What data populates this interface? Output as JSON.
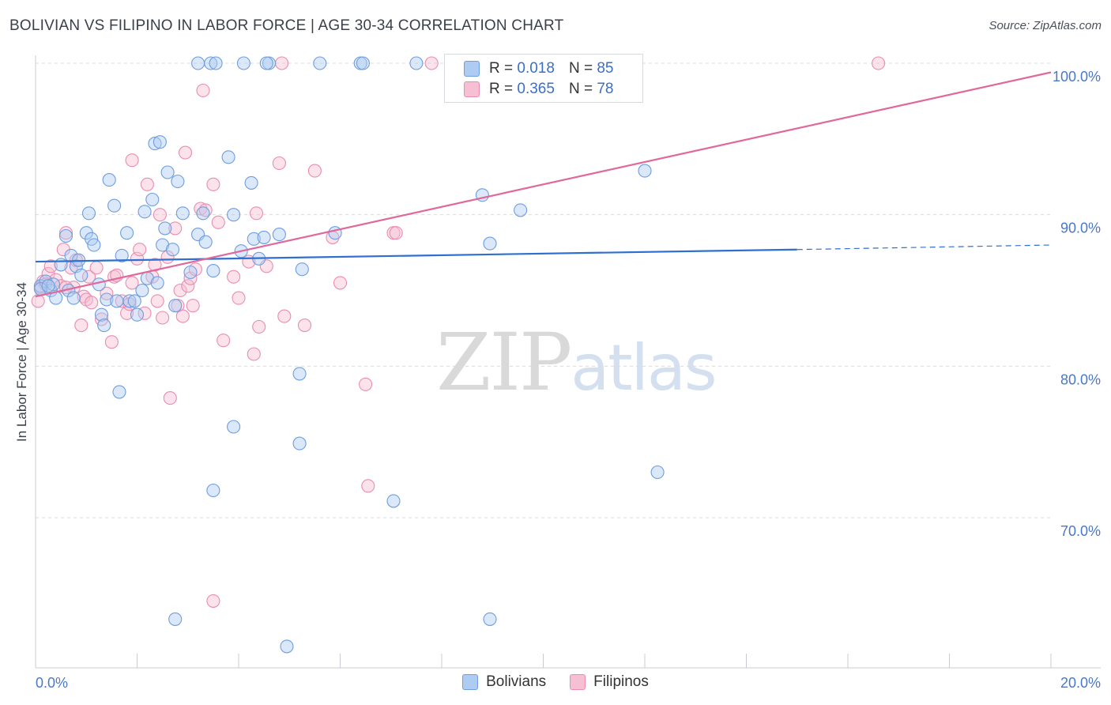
{
  "header": {
    "title": "BOLIVIAN VS FILIPINO IN LABOR FORCE | AGE 30-34 CORRELATION CHART",
    "source": "Source: ZipAtlas.com"
  },
  "watermark": {
    "zip": "ZIP",
    "atlas": "atlas"
  },
  "legend": {
    "bolivians": {
      "r_label": "R =",
      "r_value": "0.018",
      "n_label": "N =",
      "n_value": "85"
    },
    "filipinos": {
      "r_label": "R =",
      "r_value": "0.365",
      "n_label": "N =",
      "n_value": "78"
    }
  },
  "bottom_legend": {
    "bolivians": "Bolivians",
    "filipinos": "Filipinos"
  },
  "colors": {
    "bolivian_fill": "#aecbf2",
    "bolivian_stroke": "#6e9de0",
    "bolivian_line": "#2f6fcf",
    "filipino_fill": "#f7bfd3",
    "filipino_stroke": "#e98db0",
    "filipino_line": "#e0689a",
    "tick_text": "#4a78c8",
    "grid": "#d8dbe0"
  },
  "chart_data": {
    "type": "scatter",
    "title": "BOLIVIAN VS FILIPINO IN LABOR FORCE | AGE 30-34 CORRELATION CHART",
    "xlabel": "",
    "ylabel": "In Labor Force | Age 30-34",
    "xlim": [
      0,
      20
    ],
    "ylim": [
      60.5,
      102
    ],
    "x_tick_labels": [
      "0.0%",
      "20.0%"
    ],
    "y_ticks": [
      70,
      80,
      90,
      100
    ],
    "y_tick_labels": [
      "70.0%",
      "80.0%",
      "90.0%",
      "100.0%"
    ],
    "series": [
      {
        "name": "Bolivians",
        "R": 0.018,
        "N": 85,
        "trend": {
          "x0": 0,
          "y0": 86.9,
          "x1": 15,
          "y1": 87.7,
          "dashed_to_x": 20,
          "dashed_to_y": 88.0
        },
        "points": [
          [
            0.1,
            85.3
          ],
          [
            0.2,
            85.6
          ],
          [
            0.3,
            85.0
          ],
          [
            0.35,
            85.4
          ],
          [
            0.4,
            84.5
          ],
          [
            0.5,
            86.7
          ],
          [
            0.6,
            88.6
          ],
          [
            0.65,
            85.0
          ],
          [
            0.7,
            87.3
          ],
          [
            0.75,
            84.5
          ],
          [
            0.8,
            86.6
          ],
          [
            0.85,
            87.0
          ],
          [
            0.9,
            86.0
          ],
          [
            1.0,
            88.8
          ],
          [
            1.05,
            90.1
          ],
          [
            1.1,
            88.4
          ],
          [
            1.15,
            88.0
          ],
          [
            1.25,
            85.4
          ],
          [
            1.3,
            83.4
          ],
          [
            1.35,
            82.7
          ],
          [
            1.4,
            84.4
          ],
          [
            1.45,
            92.3
          ],
          [
            1.6,
            84.3
          ],
          [
            1.55,
            90.6
          ],
          [
            1.65,
            78.3
          ],
          [
            1.7,
            87.3
          ],
          [
            1.8,
            88.8
          ],
          [
            1.85,
            84.3
          ],
          [
            1.95,
            84.3
          ],
          [
            2.0,
            83.4
          ],
          [
            2.1,
            85.0
          ],
          [
            2.15,
            90.2
          ],
          [
            2.2,
            85.8
          ],
          [
            2.3,
            91.0
          ],
          [
            2.35,
            94.7
          ],
          [
            2.4,
            85.5
          ],
          [
            2.45,
            94.8
          ],
          [
            2.5,
            88.0
          ],
          [
            2.55,
            89.1
          ],
          [
            2.6,
            92.8
          ],
          [
            2.7,
            87.7
          ],
          [
            2.75,
            84.0
          ],
          [
            2.8,
            92.2
          ],
          [
            2.9,
            90.1
          ],
          [
            3.05,
            86.2
          ],
          [
            3.2,
            88.7
          ],
          [
            3.3,
            90.1
          ],
          [
            3.35,
            88.2
          ],
          [
            3.5,
            86.3
          ],
          [
            3.8,
            93.8
          ],
          [
            3.9,
            90.0
          ],
          [
            4.05,
            87.6
          ],
          [
            4.25,
            92.1
          ],
          [
            4.3,
            88.4
          ],
          [
            4.4,
            87.1
          ],
          [
            4.5,
            88.5
          ],
          [
            4.8,
            88.7
          ],
          [
            5.2,
            79.5
          ],
          [
            5.25,
            86.4
          ],
          [
            5.2,
            74.9
          ],
          [
            3.9,
            76.0
          ],
          [
            3.5,
            71.8
          ],
          [
            2.75,
            63.3
          ],
          [
            4.95,
            61.5
          ],
          [
            5.9,
            88.8
          ],
          [
            8.8,
            91.3
          ],
          [
            8.95,
            88.1
          ],
          [
            9.55,
            90.3
          ],
          [
            8.95,
            63.3
          ],
          [
            7.05,
            71.1
          ],
          [
            12.0,
            92.9
          ],
          [
            12.25,
            73.0
          ],
          [
            3.2,
            100
          ],
          [
            3.45,
            100
          ],
          [
            4.1,
            100
          ],
          [
            4.6,
            100
          ],
          [
            5.6,
            100
          ],
          [
            6.4,
            100
          ],
          [
            6.45,
            100
          ],
          [
            7.5,
            100
          ],
          [
            8.2,
            100
          ],
          [
            3.55,
            100
          ],
          [
            4.55,
            100
          ],
          [
            0.1,
            85.1
          ],
          [
            0.25,
            85.3
          ]
        ]
      },
      {
        "name": "Filipinos",
        "R": 0.365,
        "N": 78,
        "trend": {
          "x0": 0,
          "y0": 84.6,
          "x1": 20,
          "y1": 99.4
        },
        "points": [
          [
            0.05,
            84.3
          ],
          [
            0.15,
            85.6
          ],
          [
            0.25,
            86.1
          ],
          [
            0.3,
            86.6
          ],
          [
            0.4,
            85.7
          ],
          [
            0.5,
            85.3
          ],
          [
            0.55,
            87.7
          ],
          [
            0.6,
            88.8
          ],
          [
            0.7,
            86.5
          ],
          [
            0.75,
            85.2
          ],
          [
            0.8,
            87.0
          ],
          [
            0.9,
            82.7
          ],
          [
            0.95,
            84.6
          ],
          [
            1.0,
            84.4
          ],
          [
            1.05,
            85.9
          ],
          [
            1.1,
            84.2
          ],
          [
            1.2,
            86.5
          ],
          [
            1.3,
            83.1
          ],
          [
            1.4,
            84.8
          ],
          [
            1.5,
            81.6
          ],
          [
            1.55,
            85.9
          ],
          [
            1.6,
            86.0
          ],
          [
            1.7,
            84.3
          ],
          [
            1.8,
            83.5
          ],
          [
            1.9,
            85.5
          ],
          [
            1.9,
            93.6
          ],
          [
            2.0,
            87.1
          ],
          [
            2.05,
            87.7
          ],
          [
            2.15,
            83.5
          ],
          [
            2.2,
            92.0
          ],
          [
            2.3,
            85.9
          ],
          [
            2.35,
            86.7
          ],
          [
            2.45,
            90.0
          ],
          [
            2.5,
            83.2
          ],
          [
            2.6,
            87.2
          ],
          [
            2.65,
            77.9
          ],
          [
            2.75,
            89.1
          ],
          [
            2.8,
            84.0
          ],
          [
            2.85,
            85.0
          ],
          [
            2.9,
            83.3
          ],
          [
            2.95,
            94.1
          ],
          [
            3.0,
            85.3
          ],
          [
            3.05,
            85.8
          ],
          [
            3.15,
            86.4
          ],
          [
            3.25,
            90.4
          ],
          [
            3.35,
            90.3
          ],
          [
            3.5,
            92.0
          ],
          [
            3.6,
            89.5
          ],
          [
            3.7,
            81.7
          ],
          [
            3.9,
            85.9
          ],
          [
            4.0,
            84.5
          ],
          [
            4.2,
            86.9
          ],
          [
            4.3,
            80.8
          ],
          [
            4.35,
            90.1
          ],
          [
            4.4,
            82.6
          ],
          [
            4.55,
            86.6
          ],
          [
            4.8,
            93.4
          ],
          [
            4.9,
            83.3
          ],
          [
            5.3,
            82.7
          ],
          [
            5.5,
            92.9
          ],
          [
            5.85,
            88.5
          ],
          [
            6.0,
            85.5
          ],
          [
            6.5,
            78.8
          ],
          [
            6.55,
            72.1
          ],
          [
            7.05,
            88.8
          ],
          [
            7.1,
            88.8
          ],
          [
            3.5,
            64.5
          ],
          [
            3.3,
            98.2
          ],
          [
            4.85,
            100
          ],
          [
            7.8,
            100
          ],
          [
            11.8,
            100
          ],
          [
            16.6,
            100
          ],
          [
            0.1,
            85.2
          ],
          [
            0.2,
            85.4
          ],
          [
            1.85,
            84.1
          ],
          [
            0.6,
            85.2
          ],
          [
            2.4,
            84.3
          ],
          [
            3.1,
            84.0
          ]
        ]
      }
    ]
  }
}
